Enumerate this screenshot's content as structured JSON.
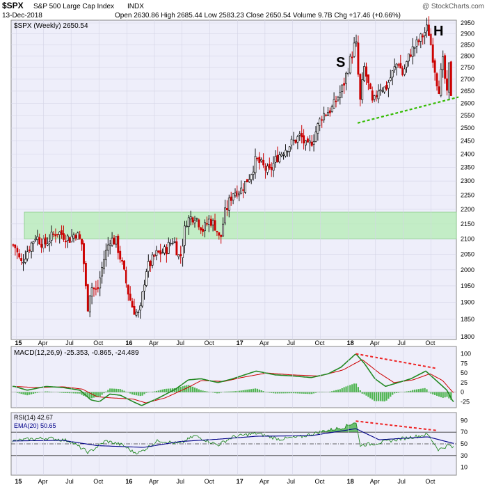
{
  "header": {
    "symbol": "$SPX",
    "name": "S&P 500 Large Cap Index",
    "exchange": "INDX",
    "date": "13-Dec-2018",
    "copyright": "@ StockCharts.com",
    "open_label": "Open",
    "open": "2630.86",
    "high_label": "High",
    "high": "2685.44",
    "low_label": "Low",
    "low": "2583.23",
    "close_label": "Close",
    "close": "2650.54",
    "volume_label": "Volume",
    "volume": "9.7B",
    "chg_label": "Chg",
    "chg": "+17.46 (+0.66%)"
  },
  "colors": {
    "background": "#eeeefa",
    "up": "#111111",
    "down": "#cc0000",
    "zone": "#b4ecb4",
    "trend": "#33bb00",
    "divergence": "#ee2222",
    "macd_line": "#228822",
    "signal_line": "#cc0000",
    "histogram": "#33aa33",
    "rsi_line": "#228822",
    "ema_line": "#000088"
  },
  "chart_data": [
    {
      "type": "candlestick",
      "legend": "$SPX (Weekly) 2650.54",
      "interval": "weekly",
      "ylim": [
        1800,
        2950
      ],
      "yscale": "log",
      "y_ticks": [
        1800,
        1850,
        1900,
        1950,
        2000,
        2050,
        2100,
        2150,
        2200,
        2250,
        2300,
        2350,
        2400,
        2450,
        2500,
        2550,
        2600,
        2650,
        2700,
        2750,
        2800,
        2850,
        2900,
        2950
      ],
      "x_ticks": [
        "15",
        "Apr",
        "Jul",
        "Oct",
        "16",
        "Apr",
        "Jul",
        "Oct",
        "17",
        "Apr",
        "Jul",
        "Oct",
        "18",
        "Apr",
        "Jul",
        "Oct"
      ],
      "annotations": [
        "S",
        "H"
      ],
      "support_zone": [
        2100,
        2190
      ],
      "neckline": {
        "x": [
          "2018-02-01",
          "2018-12-31"
        ],
        "y": [
          2520,
          2625
        ]
      },
      "price_path": [
        [
          "2014-12-26",
          2080
        ],
        [
          "2015-01-16",
          2020
        ],
        [
          "2015-02-06",
          2060
        ],
        [
          "2015-03-06",
          2110
        ],
        [
          "2015-04-03",
          2080
        ],
        [
          "2015-05-15",
          2125
        ],
        [
          "2015-06-26",
          2100
        ],
        [
          "2015-07-17",
          2120
        ],
        [
          "2015-08-07",
          2080
        ],
        [
          "2015-08-24",
          1880
        ],
        [
          "2015-09-04",
          1950
        ],
        [
          "2015-09-25",
          1930
        ],
        [
          "2015-10-16",
          2030
        ],
        [
          "2015-11-06",
          2100
        ],
        [
          "2015-11-27",
          2090
        ],
        [
          "2015-12-18",
          2010
        ],
        [
          "2016-01-08",
          1920
        ],
        [
          "2016-01-22",
          1880
        ],
        [
          "2016-02-12",
          1860
        ],
        [
          "2016-03-04",
          2000
        ],
        [
          "2016-04-08",
          2050
        ],
        [
          "2016-05-06",
          2060
        ],
        [
          "2016-06-03",
          2100
        ],
        [
          "2016-06-24",
          2030
        ],
        [
          "2016-07-15",
          2160
        ],
        [
          "2016-08-12",
          2180
        ],
        [
          "2016-09-09",
          2130
        ],
        [
          "2016-09-30",
          2165
        ],
        [
          "2016-10-21",
          2140
        ],
        [
          "2016-11-04",
          2090
        ],
        [
          "2016-11-18",
          2180
        ],
        [
          "2016-12-16",
          2260
        ],
        [
          "2017-01-13",
          2270
        ],
        [
          "2017-02-10",
          2320
        ],
        [
          "2017-03-03",
          2380
        ],
        [
          "2017-04-14",
          2330
        ],
        [
          "2017-05-12",
          2390
        ],
        [
          "2017-06-16",
          2430
        ],
        [
          "2017-07-28",
          2470
        ],
        [
          "2017-08-18",
          2420
        ],
        [
          "2017-09-08",
          2460
        ],
        [
          "2017-10-06",
          2550
        ],
        [
          "2017-11-10",
          2580
        ],
        [
          "2017-12-15",
          2670
        ],
        [
          "2018-01-26",
          2870
        ],
        [
          "2018-02-09",
          2600
        ],
        [
          "2018-02-23",
          2750
        ],
        [
          "2018-03-23",
          2590
        ],
        [
          "2018-04-13",
          2670
        ],
        [
          "2018-05-04",
          2660
        ],
        [
          "2018-06-15",
          2780
        ],
        [
          "2018-06-29",
          2720
        ],
        [
          "2018-07-27",
          2820
        ],
        [
          "2018-08-24",
          2870
        ],
        [
          "2018-09-21",
          2930
        ],
        [
          "2018-10-12",
          2760
        ],
        [
          "2018-10-26",
          2650
        ],
        [
          "2018-11-09",
          2780
        ],
        [
          "2018-11-23",
          2630
        ],
        [
          "2018-11-30",
          2760
        ],
        [
          "2018-12-07",
          2630
        ],
        [
          "2018-12-13",
          2650
        ]
      ]
    },
    {
      "type": "line",
      "legend": "MACD(12,26,9)",
      "legend_values": "-25.353, -0.865, -24.489",
      "ylim": [
        -35,
        110
      ],
      "y_ticks": [
        -25,
        0,
        25,
        50,
        75,
        100
      ],
      "series": [
        {
          "name": "MACD",
          "points": [
            [
              "2014-12-26",
              15
            ],
            [
              "2015-02-06",
              5
            ],
            [
              "2015-04-10",
              15
            ],
            [
              "2015-06-05",
              12
            ],
            [
              "2015-07-31",
              5
            ],
            [
              "2015-09-04",
              -20
            ],
            [
              "2015-10-02",
              -25
            ],
            [
              "2015-11-06",
              -5
            ],
            [
              "2015-12-11",
              -8
            ],
            [
              "2016-01-22",
              -25
            ],
            [
              "2016-02-19",
              -35
            ],
            [
              "2016-04-15",
              -15
            ],
            [
              "2016-06-10",
              8
            ],
            [
              "2016-07-22",
              32
            ],
            [
              "2016-09-02",
              35
            ],
            [
              "2016-10-28",
              25
            ],
            [
              "2016-12-16",
              35
            ],
            [
              "2017-03-03",
              55
            ],
            [
              "2017-05-05",
              45
            ],
            [
              "2017-07-07",
              42
            ],
            [
              "2017-09-01",
              38
            ],
            [
              "2017-10-27",
              48
            ],
            [
              "2017-12-08",
              65
            ],
            [
              "2018-01-26",
              100
            ],
            [
              "2018-02-23",
              75
            ],
            [
              "2018-03-30",
              35
            ],
            [
              "2018-05-04",
              15
            ],
            [
              "2018-06-15",
              25
            ],
            [
              "2018-07-27",
              35
            ],
            [
              "2018-09-14",
              55
            ],
            [
              "2018-10-19",
              30
            ],
            [
              "2018-11-23",
              5
            ],
            [
              "2018-12-13",
              -25
            ]
          ]
        },
        {
          "name": "Signal",
          "points": [
            [
              "2014-12-26",
              15
            ],
            [
              "2015-03-06",
              12
            ],
            [
              "2015-06-05",
              14
            ],
            [
              "2015-08-07",
              8
            ],
            [
              "2015-09-25",
              -12
            ],
            [
              "2015-11-13",
              -15
            ],
            [
              "2016-01-22",
              -18
            ],
            [
              "2016-03-04",
              -28
            ],
            [
              "2016-05-06",
              -15
            ],
            [
              "2016-07-15",
              10
            ],
            [
              "2016-09-02",
              30
            ],
            [
              "2016-11-18",
              28
            ],
            [
              "2017-01-13",
              38
            ],
            [
              "2017-04-07",
              50
            ],
            [
              "2017-06-30",
              45
            ],
            [
              "2017-09-29",
              42
            ],
            [
              "2017-12-15",
              58
            ],
            [
              "2018-02-16",
              85
            ],
            [
              "2018-04-13",
              50
            ],
            [
              "2018-06-01",
              25
            ],
            [
              "2018-08-03",
              32
            ],
            [
              "2018-09-28",
              48
            ],
            [
              "2018-11-09",
              30
            ],
            [
              "2018-12-13",
              -1
            ]
          ]
        }
      ],
      "divergence": {
        "x": [
          "2018-01-26",
          "2018-10-19"
        ],
        "y": [
          100,
          62
        ]
      }
    },
    {
      "type": "line",
      "legend": "RSI(14)",
      "legend_value": "42.67",
      "legend_ema": "EMA(20)",
      "legend_ema_value": "50.65",
      "ylim": [
        0,
        100
      ],
      "y_ticks": [
        10,
        30,
        50,
        70,
        90
      ],
      "levels": [
        70,
        50,
        30
      ],
      "series": [
        {
          "name": "RSI",
          "points": [
            [
              "2014-12-26",
              55
            ],
            [
              "2015-02-13",
              58
            ],
            [
              "2015-04-17",
              60
            ],
            [
              "2015-06-26",
              55
            ],
            [
              "2015-08-28",
              35
            ],
            [
              "2015-10-23",
              55
            ],
            [
              "2015-12-18",
              48
            ],
            [
              "2016-01-22",
              36
            ],
            [
              "2016-02-12",
              35
            ],
            [
              "2016-04-15",
              56
            ],
            [
              "2016-06-24",
              50
            ],
            [
              "2016-08-12",
              64
            ],
            [
              "2016-10-28",
              48
            ],
            [
              "2016-12-16",
              62
            ],
            [
              "2017-03-03",
              68
            ],
            [
              "2017-05-19",
              58
            ],
            [
              "2017-07-28",
              62
            ],
            [
              "2017-10-13",
              72
            ],
            [
              "2017-12-15",
              78
            ],
            [
              "2018-01-26",
              88
            ],
            [
              "2018-02-09",
              48
            ],
            [
              "2018-03-23",
              50
            ],
            [
              "2018-06-15",
              58
            ],
            [
              "2018-09-21",
              66
            ],
            [
              "2018-10-26",
              40
            ],
            [
              "2018-11-30",
              48
            ],
            [
              "2018-12-13",
              43
            ]
          ]
        },
        {
          "name": "EMA(20)",
          "points": [
            [
              "2014-12-26",
              55
            ],
            [
              "2015-06-05",
              56
            ],
            [
              "2015-09-25",
              47
            ],
            [
              "2016-02-26",
              44
            ],
            [
              "2016-06-24",
              54
            ],
            [
              "2016-10-28",
              58
            ],
            [
              "2017-03-03",
              63
            ],
            [
              "2017-09-01",
              64
            ],
            [
              "2018-01-26",
              76
            ],
            [
              "2018-04-13",
              57
            ],
            [
              "2018-09-21",
              62
            ],
            [
              "2018-12-13",
              51
            ]
          ]
        }
      ]
    }
  ]
}
